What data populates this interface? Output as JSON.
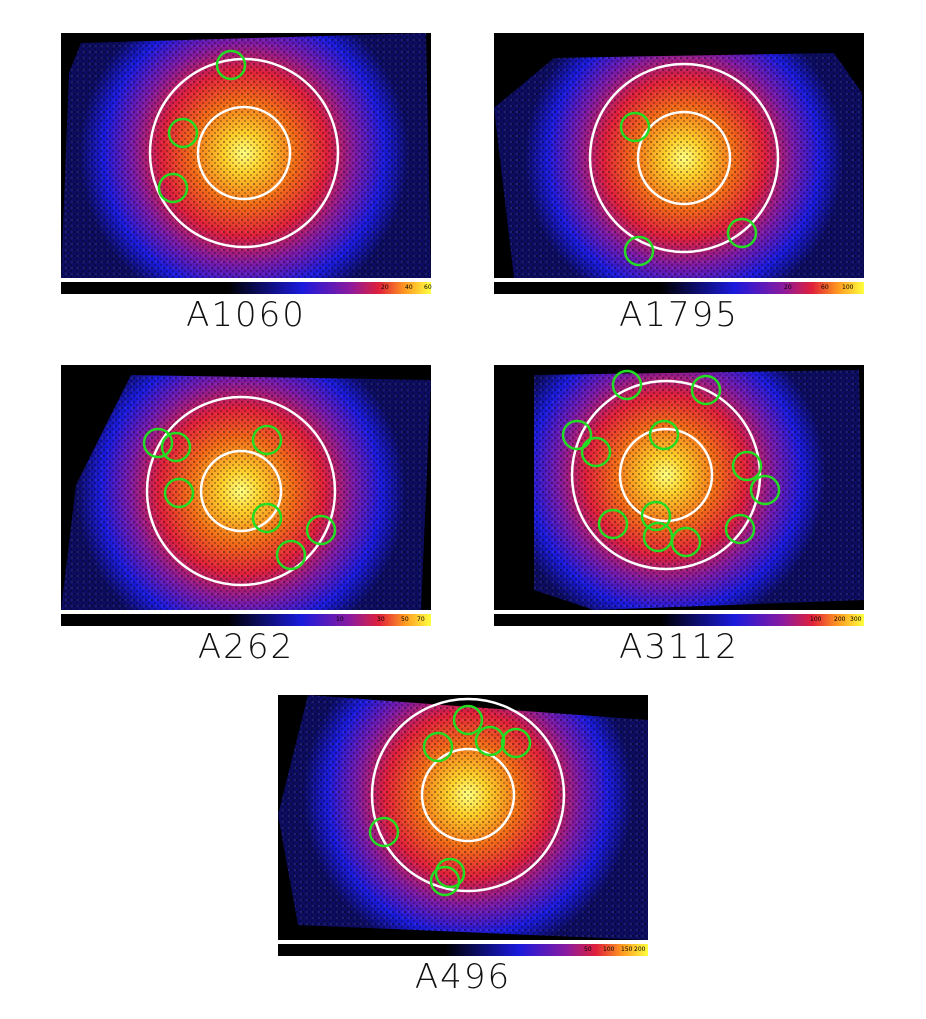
{
  "colors": {
    "background": "#000000",
    "outer_halo": "#1a1adc",
    "mid_glow": "#e0203a",
    "core": "#ffd02a",
    "peak": "#ffff80",
    "region_ring": "#ffffff",
    "source_circle": "#22dd22"
  },
  "panels": [
    {
      "name": "A1060",
      "colorbar_ticks": [
        "20",
        "40",
        "60"
      ],
      "excluded_sources": 3
    },
    {
      "name": "A1795",
      "colorbar_ticks": [
        "20",
        "60",
        "100"
      ],
      "excluded_sources": 3
    },
    {
      "name": "A262",
      "colorbar_ticks": [
        "10",
        "30",
        "50",
        "70"
      ],
      "excluded_sources": 7
    },
    {
      "name": "A3112",
      "colorbar_ticks": [
        "100",
        "200",
        "300"
      ],
      "excluded_sources": 12
    },
    {
      "name": "A496",
      "colorbar_ticks": [
        "50",
        "100",
        "150",
        "200"
      ],
      "excluded_sources": 7
    }
  ]
}
